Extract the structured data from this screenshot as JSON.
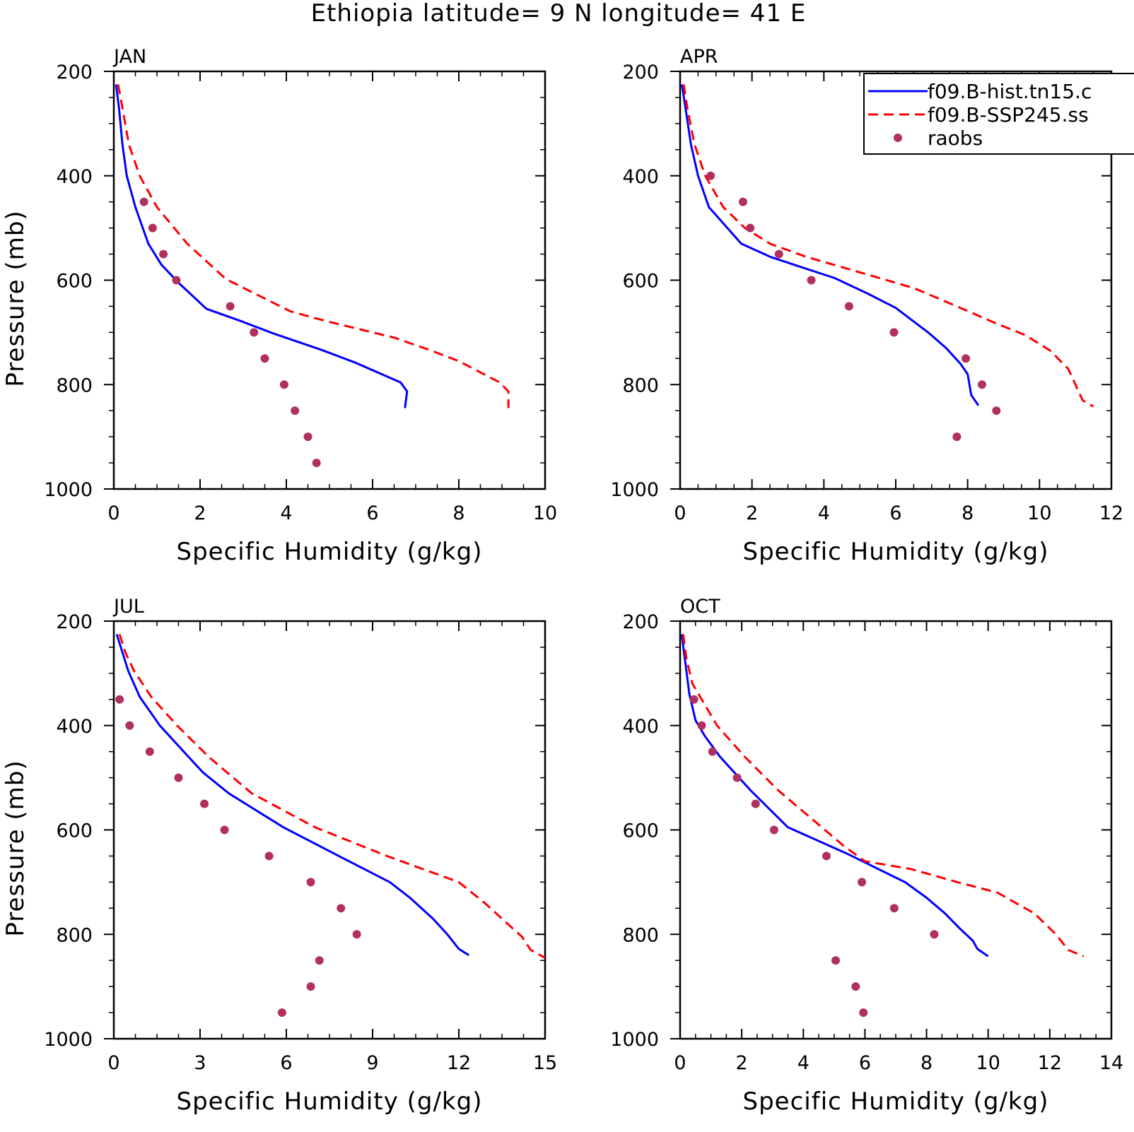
{
  "figure": {
    "title": "Ethiopia  latitude= 9 N longitude= 41 E"
  },
  "legend": {
    "entries": [
      {
        "label": "f09.B-hist.tn15.c",
        "style": "solid",
        "color": "#0000ff"
      },
      {
        "label": "f09.B-SSP245.ss",
        "style": "dashed",
        "color": "#ff0000"
      },
      {
        "label": "raobs",
        "style": "marker",
        "color": "#b03060"
      }
    ]
  },
  "chart_data": [
    {
      "type": "line",
      "title": "JAN",
      "xlabel": "Specific Humidity (g/kg)",
      "ylabel": "Pressure (mb)",
      "xlim": [
        0,
        10
      ],
      "xticks": [
        0,
        2,
        4,
        6,
        8,
        10
      ],
      "ylim": [
        200,
        1000
      ],
      "yticks": [
        200,
        400,
        600,
        800,
        1000
      ],
      "y_inverted": true,
      "series": [
        {
          "name": "f09.B-hist.tn15.c",
          "style": "solid",
          "color": "#0000ff",
          "x": [
            0.05,
            0.12,
            0.2,
            0.3,
            0.5,
            0.8,
            1.1,
            1.5,
            2.15,
            3.0,
            3.7,
            4.8,
            5.6,
            6.65,
            6.8,
            6.75
          ],
          "y": [
            225,
            270,
            340,
            400,
            460,
            530,
            570,
            605,
            655,
            680,
            702,
            733,
            758,
            796,
            813,
            845
          ]
        },
        {
          "name": "f09.B-SSP245.ss",
          "style": "dashed",
          "color": "#ff0000",
          "x": [
            0.1,
            0.2,
            0.35,
            0.6,
            1.0,
            1.6,
            1.7,
            2.6,
            4.1,
            5.0,
            6.5,
            7.3,
            8.0,
            8.95,
            9.15,
            9.15
          ],
          "y": [
            225,
            270,
            340,
            400,
            460,
            520,
            530,
            598,
            660,
            680,
            710,
            733,
            755,
            796,
            813,
            845
          ]
        },
        {
          "name": "raobs",
          "style": "marker",
          "color": "#b03060",
          "x": [
            0.7,
            0.9,
            1.15,
            1.45,
            2.7,
            3.25,
            3.5,
            3.95,
            4.2,
            4.5,
            4.7
          ],
          "y": [
            450,
            500,
            550,
            600,
            650,
            700,
            750,
            800,
            850,
            900,
            950
          ]
        }
      ]
    },
    {
      "type": "line",
      "title": "APR",
      "xlabel": "Specific Humidity (g/kg)",
      "ylabel": "",
      "xlim": [
        0,
        12
      ],
      "xticks": [
        0,
        2,
        4,
        6,
        8,
        10,
        12
      ],
      "ylim": [
        200,
        1000
      ],
      "yticks": [
        200,
        400,
        600,
        800,
        1000
      ],
      "y_inverted": true,
      "series": [
        {
          "name": "f09.B-hist.tn15.c",
          "style": "solid",
          "color": "#0000ff",
          "x": [
            0.05,
            0.15,
            0.3,
            0.5,
            0.8,
            1.7,
            2.5,
            3.5,
            4.3,
            5.2,
            6.0,
            6.9,
            7.4,
            7.8,
            8.0,
            8.1,
            8.3
          ],
          "y": [
            225,
            270,
            340,
            400,
            460,
            530,
            555,
            578,
            596,
            625,
            653,
            700,
            730,
            760,
            780,
            820,
            840
          ]
        },
        {
          "name": "f09.B-SSP245.ss",
          "style": "dashed",
          "color": "#ff0000",
          "x": [
            0.1,
            0.2,
            0.4,
            0.7,
            1.2,
            1.8,
            2.5,
            3.5,
            5.0,
            6.5,
            7.8,
            8.8,
            9.6,
            10.3,
            10.8,
            11.0,
            11.2,
            11.5
          ],
          "y": [
            225,
            270,
            340,
            400,
            460,
            500,
            530,
            555,
            585,
            615,
            653,
            683,
            705,
            735,
            770,
            800,
            830,
            842
          ]
        },
        {
          "name": "raobs",
          "style": "marker",
          "color": "#b03060",
          "x": [
            0.85,
            1.75,
            1.95,
            2.75,
            3.65,
            4.7,
            5.95,
            7.95,
            8.4,
            8.8,
            7.7
          ],
          "y": [
            400,
            450,
            500,
            550,
            600,
            650,
            700,
            750,
            800,
            850,
            900
          ]
        }
      ]
    },
    {
      "type": "line",
      "title": "JUL",
      "xlabel": "Specific Humidity (g/kg)",
      "ylabel": "Pressure (mb)",
      "xlim": [
        0,
        15
      ],
      "xticks": [
        0,
        3,
        6,
        9,
        12,
        15
      ],
      "ylim": [
        200,
        1000
      ],
      "yticks": [
        200,
        400,
        600,
        800,
        1000
      ],
      "y_inverted": true,
      "series": [
        {
          "name": "f09.B-hist.tn15.c",
          "style": "solid",
          "color": "#0000ff",
          "x": [
            0.1,
            0.3,
            0.5,
            0.9,
            1.6,
            2.6,
            3.1,
            4.0,
            5.9,
            8.0,
            9.6,
            10.3,
            11.1,
            11.6,
            12.0,
            12.35
          ],
          "y": [
            225,
            260,
            295,
            345,
            400,
            460,
            490,
            530,
            595,
            655,
            700,
            730,
            770,
            800,
            828,
            840
          ]
        },
        {
          "name": "f09.B-SSP245.ss",
          "style": "dashed",
          "color": "#ff0000",
          "x": [
            0.2,
            0.4,
            0.7,
            1.3,
            2.2,
            3.3,
            4.8,
            7.0,
            9.5,
            12.0,
            12.9,
            13.6,
            14.2,
            14.5,
            15.0
          ],
          "y": [
            225,
            260,
            295,
            345,
            400,
            460,
            530,
            595,
            650,
            700,
            740,
            775,
            805,
            830,
            845
          ]
        },
        {
          "name": "raobs",
          "style": "marker",
          "color": "#b03060",
          "x": [
            0.2,
            0.55,
            1.25,
            2.25,
            3.15,
            3.85,
            5.4,
            6.85,
            7.9,
            8.45,
            7.15,
            6.85,
            5.85
          ],
          "y": [
            350,
            400,
            450,
            500,
            550,
            600,
            650,
            700,
            750,
            800,
            850,
            900,
            950
          ]
        }
      ]
    },
    {
      "type": "line",
      "title": "OCT",
      "xlabel": "Specific Humidity (g/kg)",
      "ylabel": "",
      "xlim": [
        0,
        14
      ],
      "xticks": [
        0,
        2,
        4,
        6,
        8,
        10,
        12,
        14
      ],
      "ylim": [
        200,
        1000
      ],
      "yticks": [
        200,
        400,
        600,
        800,
        1000
      ],
      "y_inverted": true,
      "series": [
        {
          "name": "f09.B-hist.tn15.c",
          "style": "solid",
          "color": "#0000ff",
          "x": [
            0.05,
            0.15,
            0.3,
            0.5,
            0.8,
            1.3,
            2.3,
            3.5,
            5.4,
            7.3,
            8.0,
            8.6,
            9.1,
            9.5,
            9.65,
            10.0
          ],
          "y": [
            225,
            270,
            340,
            390,
            420,
            460,
            525,
            595,
            645,
            700,
            730,
            760,
            790,
            812,
            828,
            842
          ]
        },
        {
          "name": "f09.B-SSP245.ss",
          "style": "dashed",
          "color": "#ff0000",
          "x": [
            0.1,
            0.2,
            0.4,
            0.7,
            1.2,
            2.1,
            3.2,
            4.3,
            5.3,
            6.0,
            7.5,
            9.0,
            10.3,
            11.5,
            12.2,
            12.6,
            13.1
          ],
          "y": [
            225,
            270,
            320,
            350,
            400,
            460,
            525,
            580,
            630,
            660,
            675,
            700,
            720,
            760,
            800,
            830,
            842
          ]
        },
        {
          "name": "raobs",
          "style": "marker",
          "color": "#b03060",
          "x": [
            0.45,
            0.7,
            1.05,
            1.85,
            2.45,
            3.05,
            4.75,
            5.9,
            6.95,
            8.25,
            5.05,
            5.7,
            5.95
          ],
          "y": [
            350,
            400,
            450,
            500,
            550,
            600,
            650,
            700,
            750,
            800,
            850,
            900,
            950
          ]
        }
      ]
    }
  ]
}
